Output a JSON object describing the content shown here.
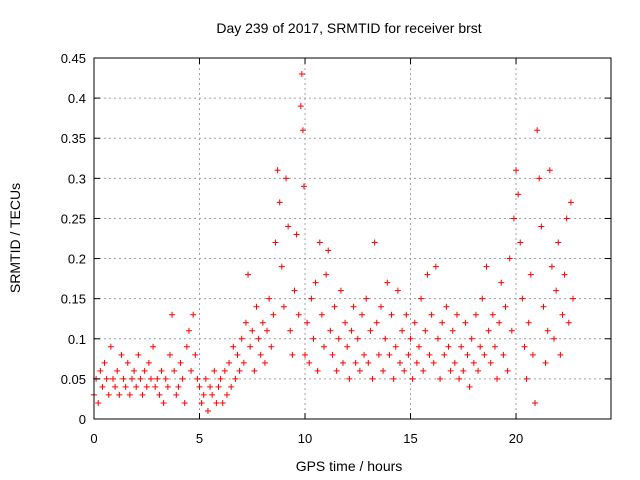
{
  "chart_data": {
    "type": "scatter",
    "title": "Day 239 of 2017, SRMTID for receiver brst",
    "xlabel": "GPS time / hours",
    "ylabel": "SRMTID / TECUs",
    "xlim": [
      0,
      24.5
    ],
    "ylim": [
      0,
      0.45
    ],
    "x_ticks": [
      0,
      5,
      10,
      15,
      20
    ],
    "x_tick_labels": [
      "0",
      "5",
      "10",
      "15",
      "20"
    ],
    "y_ticks": [
      0,
      0.05,
      0.1,
      0.15,
      0.2,
      0.25,
      0.3,
      0.35,
      0.4,
      0.45
    ],
    "y_tick_labels": [
      "0",
      "0.05",
      "0.1",
      "0.15",
      "0.2",
      "0.25",
      "0.3",
      "0.35",
      "0.4",
      "0.45"
    ],
    "grid": true,
    "marker": "plus",
    "series_color": "#ff0000",
    "series": [
      {
        "name": "SRMTID",
        "points": [
          [
            0.0,
            0.03
          ],
          [
            0.1,
            0.05
          ],
          [
            0.2,
            0.02
          ],
          [
            0.3,
            0.06
          ],
          [
            0.4,
            0.04
          ],
          [
            0.5,
            0.07
          ],
          [
            0.6,
            0.05
          ],
          [
            0.7,
            0.03
          ],
          [
            0.8,
            0.09
          ],
          [
            0.9,
            0.05
          ],
          [
            1.0,
            0.04
          ],
          [
            1.1,
            0.06
          ],
          [
            1.2,
            0.03
          ],
          [
            1.3,
            0.08
          ],
          [
            1.4,
            0.05
          ],
          [
            1.5,
            0.04
          ],
          [
            1.6,
            0.07
          ],
          [
            1.7,
            0.03
          ],
          [
            1.8,
            0.05
          ],
          [
            1.9,
            0.06
          ],
          [
            2.0,
            0.04
          ],
          [
            2.1,
            0.08
          ],
          [
            2.2,
            0.05
          ],
          [
            2.3,
            0.03
          ],
          [
            2.4,
            0.06
          ],
          [
            2.5,
            0.04
          ],
          [
            2.6,
            0.07
          ],
          [
            2.7,
            0.05
          ],
          [
            2.8,
            0.09
          ],
          [
            2.9,
            0.04
          ],
          [
            3.0,
            0.05
          ],
          [
            3.1,
            0.03
          ],
          [
            3.2,
            0.06
          ],
          [
            3.3,
            0.02
          ],
          [
            3.4,
            0.05
          ],
          [
            3.5,
            0.04
          ],
          [
            3.6,
            0.08
          ],
          [
            3.7,
            0.13
          ],
          [
            3.8,
            0.06
          ],
          [
            3.9,
            0.03
          ],
          [
            4.0,
            0.04
          ],
          [
            4.1,
            0.07
          ],
          [
            4.2,
            0.05
          ],
          [
            4.3,
            0.02
          ],
          [
            4.4,
            0.09
          ],
          [
            4.5,
            0.11
          ],
          [
            4.6,
            0.06
          ],
          [
            4.7,
            0.13
          ],
          [
            4.8,
            0.08
          ],
          [
            4.9,
            0.05
          ],
          [
            5.0,
            0.04
          ],
          [
            5.1,
            0.02
          ],
          [
            5.2,
            0.03
          ],
          [
            5.3,
            0.05
          ],
          [
            5.4,
            0.01
          ],
          [
            5.5,
            0.04
          ],
          [
            5.6,
            0.03
          ],
          [
            5.7,
            0.06
          ],
          [
            5.8,
            0.02
          ],
          [
            5.9,
            0.04
          ],
          [
            6.0,
            0.05
          ],
          [
            6.1,
            0.02
          ],
          [
            6.2,
            0.06
          ],
          [
            6.3,
            0.03
          ],
          [
            6.4,
            0.07
          ],
          [
            6.5,
            0.04
          ],
          [
            6.6,
            0.09
          ],
          [
            6.7,
            0.05
          ],
          [
            6.8,
            0.08
          ],
          [
            6.9,
            0.06
          ],
          [
            7.0,
            0.1
          ],
          [
            7.1,
            0.07
          ],
          [
            7.2,
            0.12
          ],
          [
            7.3,
            0.18
          ],
          [
            7.4,
            0.09
          ],
          [
            7.5,
            0.11
          ],
          [
            7.6,
            0.06
          ],
          [
            7.7,
            0.14
          ],
          [
            7.8,
            0.1
          ],
          [
            7.9,
            0.08
          ],
          [
            8.0,
            0.12
          ],
          [
            8.1,
            0.07
          ],
          [
            8.2,
            0.11
          ],
          [
            8.3,
            0.15
          ],
          [
            8.4,
            0.09
          ],
          [
            8.5,
            0.13
          ],
          [
            8.6,
            0.22
          ],
          [
            8.7,
            0.31
          ],
          [
            8.8,
            0.27
          ],
          [
            8.9,
            0.19
          ],
          [
            9.0,
            0.14
          ],
          [
            9.1,
            0.3
          ],
          [
            9.2,
            0.24
          ],
          [
            9.3,
            0.11
          ],
          [
            9.4,
            0.08
          ],
          [
            9.5,
            0.16
          ],
          [
            9.6,
            0.23
          ],
          [
            9.7,
            0.13
          ],
          [
            9.8,
            0.39
          ],
          [
            9.85,
            0.43
          ],
          [
            9.9,
            0.36
          ],
          [
            9.95,
            0.29
          ],
          [
            10.0,
            0.08
          ],
          [
            10.1,
            0.12
          ],
          [
            10.2,
            0.07
          ],
          [
            10.3,
            0.15
          ],
          [
            10.4,
            0.1
          ],
          [
            10.5,
            0.17
          ],
          [
            10.6,
            0.06
          ],
          [
            10.7,
            0.22
          ],
          [
            10.8,
            0.13
          ],
          [
            10.9,
            0.09
          ],
          [
            11.0,
            0.18
          ],
          [
            11.1,
            0.21
          ],
          [
            11.2,
            0.11
          ],
          [
            11.3,
            0.08
          ],
          [
            11.4,
            0.14
          ],
          [
            11.5,
            0.06
          ],
          [
            11.6,
            0.1
          ],
          [
            11.7,
            0.16
          ],
          [
            11.8,
            0.07
          ],
          [
            11.9,
            0.12
          ],
          [
            12.0,
            0.09
          ],
          [
            12.1,
            0.05
          ],
          [
            12.2,
            0.11
          ],
          [
            12.3,
            0.14
          ],
          [
            12.4,
            0.07
          ],
          [
            12.5,
            0.1
          ],
          [
            12.6,
            0.06
          ],
          [
            12.7,
            0.13
          ],
          [
            12.8,
            0.08
          ],
          [
            12.9,
            0.15
          ],
          [
            13.0,
            0.07
          ],
          [
            13.1,
            0.11
          ],
          [
            13.2,
            0.05
          ],
          [
            13.3,
            0.22
          ],
          [
            13.4,
            0.12
          ],
          [
            13.5,
            0.08
          ],
          [
            13.6,
            0.14
          ],
          [
            13.7,
            0.06
          ],
          [
            13.8,
            0.1
          ],
          [
            13.9,
            0.17
          ],
          [
            14.0,
            0.08
          ],
          [
            14.1,
            0.13
          ],
          [
            14.2,
            0.05
          ],
          [
            14.3,
            0.09
          ],
          [
            14.4,
            0.16
          ],
          [
            14.5,
            0.07
          ],
          [
            14.6,
            0.11
          ],
          [
            14.7,
            0.06
          ],
          [
            14.8,
            0.13
          ],
          [
            14.9,
            0.08
          ],
          [
            15.0,
            0.1
          ],
          [
            15.1,
            0.05
          ],
          [
            15.2,
            0.12
          ],
          [
            15.3,
            0.07
          ],
          [
            15.4,
            0.09
          ],
          [
            15.5,
            0.15
          ],
          [
            15.6,
            0.06
          ],
          [
            15.7,
            0.11
          ],
          [
            15.8,
            0.18
          ],
          [
            15.9,
            0.08
          ],
          [
            16.0,
            0.13
          ],
          [
            16.1,
            0.07
          ],
          [
            16.2,
            0.19
          ],
          [
            16.3,
            0.1
          ],
          [
            16.4,
            0.05
          ],
          [
            16.5,
            0.12
          ],
          [
            16.6,
            0.08
          ],
          [
            16.7,
            0.14
          ],
          [
            16.8,
            0.09
          ],
          [
            16.9,
            0.06
          ],
          [
            17.0,
            0.11
          ],
          [
            17.1,
            0.07
          ],
          [
            17.2,
            0.13
          ],
          [
            17.3,
            0.05
          ],
          [
            17.4,
            0.09
          ],
          [
            17.5,
            0.06
          ],
          [
            17.6,
            0.12
          ],
          [
            17.7,
            0.08
          ],
          [
            17.8,
            0.04
          ],
          [
            17.9,
            0.1
          ],
          [
            18.0,
            0.07
          ],
          [
            18.1,
            0.13
          ],
          [
            18.2,
            0.06
          ],
          [
            18.3,
            0.09
          ],
          [
            18.4,
            0.15
          ],
          [
            18.5,
            0.08
          ],
          [
            18.6,
            0.19
          ],
          [
            18.7,
            0.11
          ],
          [
            18.8,
            0.07
          ],
          [
            18.9,
            0.13
          ],
          [
            19.0,
            0.09
          ],
          [
            19.1,
            0.05
          ],
          [
            19.2,
            0.12
          ],
          [
            19.3,
            0.17
          ],
          [
            19.4,
            0.08
          ],
          [
            19.5,
            0.14
          ],
          [
            19.6,
            0.06
          ],
          [
            19.7,
            0.2
          ],
          [
            19.8,
            0.11
          ],
          [
            19.9,
            0.25
          ],
          [
            20.0,
            0.31
          ],
          [
            20.1,
            0.28
          ],
          [
            20.2,
            0.22
          ],
          [
            20.3,
            0.15
          ],
          [
            20.4,
            0.09
          ],
          [
            20.5,
            0.05
          ],
          [
            20.6,
            0.12
          ],
          [
            20.7,
            0.18
          ],
          [
            20.8,
            0.08
          ],
          [
            20.9,
            0.02
          ],
          [
            21.0,
            0.36
          ],
          [
            21.1,
            0.3
          ],
          [
            21.2,
            0.24
          ],
          [
            21.3,
            0.14
          ],
          [
            21.4,
            0.07
          ],
          [
            21.5,
            0.11
          ],
          [
            21.6,
            0.31
          ],
          [
            21.7,
            0.19
          ],
          [
            21.8,
            0.1
          ],
          [
            21.9,
            0.16
          ],
          [
            22.0,
            0.22
          ],
          [
            22.1,
            0.08
          ],
          [
            22.2,
            0.13
          ],
          [
            22.3,
            0.18
          ],
          [
            22.4,
            0.25
          ],
          [
            22.5,
            0.12
          ],
          [
            22.6,
            0.27
          ],
          [
            22.7,
            0.15
          ]
        ]
      }
    ]
  }
}
